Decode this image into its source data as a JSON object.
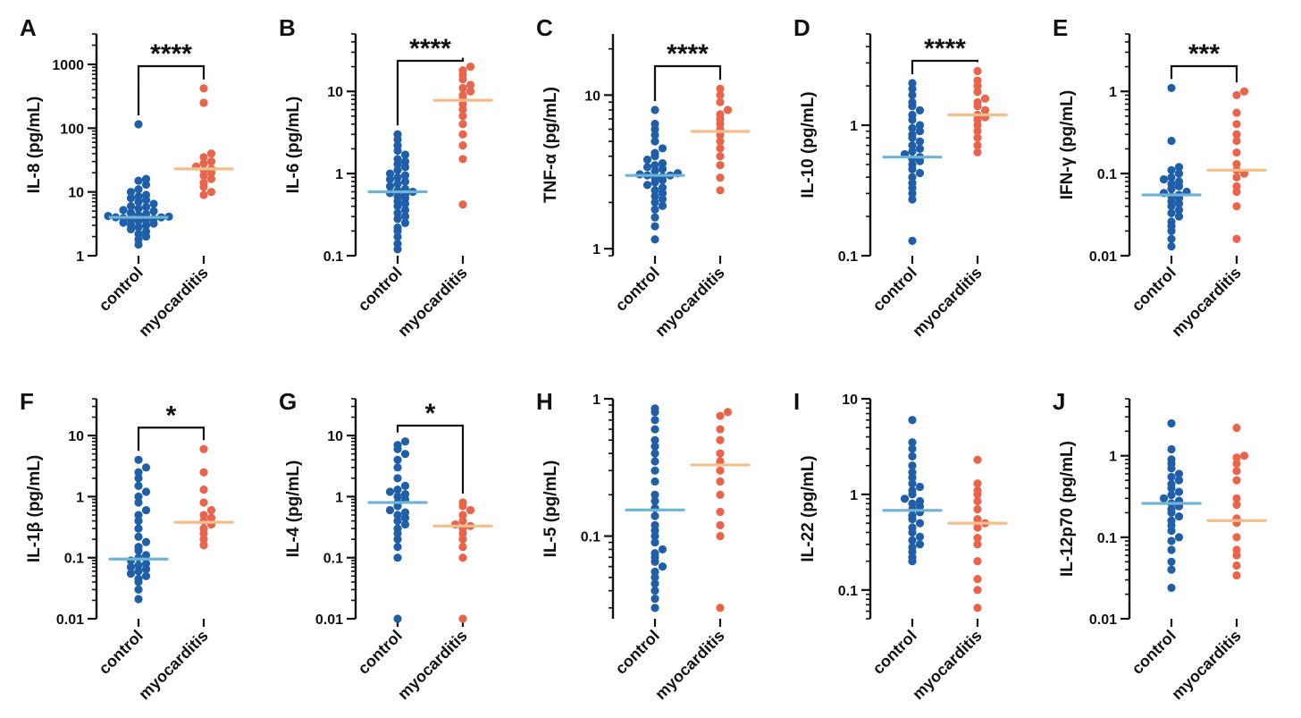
{
  "chart_data": [
    {
      "panel": "A",
      "type": "scatter",
      "ylabel": "IL-8 (pg/mL)",
      "yscale": "log",
      "ylim": [
        1,
        3000
      ],
      "yticks": [
        "1",
        "10",
        "100",
        "1000"
      ],
      "categories": [
        "control",
        "myocarditis"
      ],
      "significance": "****",
      "series": [
        {
          "name": "control",
          "color": "#1f5ea8",
          "median": 4.0,
          "values": [
            1.5,
            1.8,
            2.0,
            2.2,
            2.4,
            2.6,
            2.8,
            3.0,
            3.1,
            3.2,
            3.3,
            3.5,
            3.6,
            3.7,
            3.8,
            3.9,
            4.0,
            4.0,
            4.1,
            4.2,
            4.3,
            4.5,
            4.7,
            5.0,
            5.2,
            5.5,
            5.8,
            6.0,
            6.5,
            7.0,
            7.5,
            8.0,
            8.5,
            9.0,
            10,
            11,
            13,
            15,
            16,
            115
          ]
        },
        {
          "name": "myocarditis",
          "color": "#e8644a",
          "median": 23,
          "values": [
            9,
            10,
            12,
            14,
            16,
            18,
            20,
            22,
            23,
            25,
            28,
            30,
            35,
            40,
            250,
            420
          ]
        }
      ]
    },
    {
      "panel": "B",
      "type": "scatter",
      "ylabel": "IL-6 (pg/mL)",
      "yscale": "log",
      "ylim": [
        0.1,
        50
      ],
      "yticks": [
        "0.1",
        "1",
        "10"
      ],
      "categories": [
        "control",
        "myocarditis"
      ],
      "significance": "****",
      "series": [
        {
          "name": "control",
          "color": "#1f5ea8",
          "median": 0.6,
          "values": [
            0.12,
            0.14,
            0.17,
            0.2,
            0.22,
            0.25,
            0.28,
            0.3,
            0.33,
            0.36,
            0.4,
            0.43,
            0.46,
            0.5,
            0.53,
            0.56,
            0.58,
            0.6,
            0.62,
            0.65,
            0.7,
            0.75,
            0.8,
            0.85,
            0.9,
            0.95,
            1.0,
            1.1,
            1.2,
            1.3,
            1.4,
            1.5,
            1.7,
            1.9,
            2.2,
            2.6,
            3.0
          ]
        },
        {
          "name": "myocarditis",
          "color": "#e8644a",
          "median": 7.8,
          "values": [
            0.42,
            1.5,
            2.2,
            3.0,
            4.0,
            5.0,
            6.0,
            7.0,
            8.0,
            9.0,
            10,
            11,
            12,
            14,
            16,
            18,
            20
          ]
        }
      ]
    },
    {
      "panel": "C",
      "type": "scatter",
      "ylabel": "TNF-α (pg/mL)",
      "yscale": "log",
      "ylim": [
        0.9,
        25
      ],
      "yticks": [
        "1",
        "10"
      ],
      "categories": [
        "control",
        "myocarditis"
      ],
      "significance": "****",
      "series": [
        {
          "name": "control",
          "color": "#1f5ea8",
          "median": 3.0,
          "values": [
            1.15,
            1.4,
            1.6,
            1.8,
            1.9,
            2.0,
            2.1,
            2.2,
            2.3,
            2.4,
            2.5,
            2.6,
            2.7,
            2.8,
            2.9,
            2.95,
            3.0,
            3.0,
            3.05,
            3.1,
            3.2,
            3.3,
            3.4,
            3.5,
            3.6,
            3.8,
            4.0,
            4.2,
            4.5,
            5.0,
            5.5,
            6.0,
            6.5,
            8.0
          ]
        },
        {
          "name": "myocarditis",
          "color": "#e8644a",
          "median": 5.8,
          "values": [
            2.4,
            2.9,
            3.5,
            4.0,
            4.5,
            5.0,
            5.5,
            6.0,
            6.5,
            7.0,
            7.5,
            8.0,
            9.0,
            10,
            11
          ]
        }
      ]
    },
    {
      "panel": "D",
      "type": "scatter",
      "ylabel": "IL-10 (pg/mL)",
      "yscale": "log",
      "ylim": [
        0.1,
        5
      ],
      "yticks": [
        "0.1",
        "1"
      ],
      "categories": [
        "control",
        "myocarditis"
      ],
      "significance": "****",
      "series": [
        {
          "name": "control",
          "color": "#1f5ea8",
          "median": 0.57,
          "values": [
            0.13,
            0.27,
            0.3,
            0.33,
            0.36,
            0.4,
            0.43,
            0.46,
            0.5,
            0.53,
            0.55,
            0.57,
            0.6,
            0.63,
            0.66,
            0.7,
            0.75,
            0.8,
            0.85,
            0.9,
            0.95,
            1.0,
            1.1,
            1.2,
            1.3,
            1.4,
            1.5,
            1.7,
            1.9,
            2.1
          ]
        },
        {
          "name": "myocarditis",
          "color": "#e8644a",
          "median": 1.2,
          "values": [
            0.62,
            0.7,
            0.8,
            0.9,
            1.0,
            1.1,
            1.15,
            1.2,
            1.3,
            1.4,
            1.5,
            1.6,
            1.8,
            2.0,
            2.2,
            2.6
          ]
        }
      ]
    },
    {
      "panel": "E",
      "type": "scatter",
      "ylabel": "IFN-γ (pg/mL)",
      "yscale": "log",
      "ylim": [
        0.01,
        5
      ],
      "yticks": [
        "0.01",
        "0.1",
        "1"
      ],
      "categories": [
        "control",
        "myocarditis"
      ],
      "significance": "***",
      "series": [
        {
          "name": "control",
          "color": "#1f5ea8",
          "median": 0.055,
          "values": [
            0.013,
            0.016,
            0.02,
            0.023,
            0.026,
            0.03,
            0.033,
            0.036,
            0.04,
            0.043,
            0.046,
            0.05,
            0.053,
            0.055,
            0.058,
            0.06,
            0.065,
            0.07,
            0.075,
            0.08,
            0.085,
            0.09,
            0.1,
            0.11,
            0.12,
            0.25,
            1.1
          ]
        },
        {
          "name": "myocarditis",
          "color": "#e8644a",
          "median": 0.11,
          "values": [
            0.016,
            0.04,
            0.06,
            0.07,
            0.09,
            0.1,
            0.11,
            0.13,
            0.18,
            0.25,
            0.3,
            0.4,
            0.55,
            0.9,
            1.0
          ]
        }
      ]
    },
    {
      "panel": "F",
      "type": "scatter",
      "ylabel": "IL-1β (pg/mL)",
      "yscale": "log",
      "ylim": [
        0.01,
        40
      ],
      "yticks": [
        "0.01",
        "0.1",
        "1",
        "10"
      ],
      "categories": [
        "control",
        "myocarditis"
      ],
      "significance": "*",
      "series": [
        {
          "name": "control",
          "color": "#1f5ea8",
          "median": 0.095,
          "values": [
            0.021,
            0.03,
            0.04,
            0.045,
            0.05,
            0.055,
            0.06,
            0.065,
            0.07,
            0.075,
            0.08,
            0.09,
            0.1,
            0.11,
            0.13,
            0.15,
            0.18,
            0.22,
            0.3,
            0.4,
            0.5,
            0.6,
            0.8,
            1.0,
            1.2,
            1.5,
            2.0,
            2.5,
            3.0,
            4.0
          ]
        },
        {
          "name": "myocarditis",
          "color": "#e8644a",
          "median": 0.38,
          "values": [
            0.16,
            0.2,
            0.25,
            0.3,
            0.35,
            0.4,
            0.45,
            0.5,
            0.6,
            0.8,
            1.3,
            2.5,
            6.0
          ]
        }
      ]
    },
    {
      "panel": "G",
      "type": "scatter",
      "ylabel": "IL-4 (pg/mL)",
      "yscale": "log",
      "ylim": [
        0.01,
        40
      ],
      "yticks": [
        "0.01",
        "0.1",
        "1",
        "10"
      ],
      "categories": [
        "control",
        "myocarditis"
      ],
      "significance": "*",
      "series": [
        {
          "name": "control",
          "color": "#1f5ea8",
          "median": 0.8,
          "values": [
            0.01,
            0.1,
            0.15,
            0.2,
            0.25,
            0.3,
            0.35,
            0.4,
            0.45,
            0.5,
            0.55,
            0.6,
            0.7,
            0.8,
            0.9,
            1.0,
            1.1,
            1.2,
            1.3,
            1.5,
            2.0,
            3.0,
            4.0,
            5.0,
            6.0,
            7.0,
            8.0
          ]
        },
        {
          "name": "myocarditis",
          "color": "#e8644a",
          "median": 0.33,
          "values": [
            0.01,
            0.1,
            0.15,
            0.2,
            0.25,
            0.3,
            0.33,
            0.35,
            0.4,
            0.5,
            0.6,
            0.7,
            0.8
          ]
        }
      ]
    },
    {
      "panel": "H",
      "type": "scatter",
      "ylabel": "IL-5 (pg/mL)",
      "yscale": "log",
      "ylim": [
        0.025,
        1
      ],
      "yticks": [
        "0.1",
        "1"
      ],
      "categories": [
        "control",
        "myocarditis"
      ],
      "significance": "",
      "series": [
        {
          "name": "control",
          "color": "#1f5ea8",
          "median": 0.155,
          "values": [
            0.03,
            0.035,
            0.04,
            0.045,
            0.05,
            0.055,
            0.06,
            0.065,
            0.07,
            0.075,
            0.08,
            0.09,
            0.1,
            0.11,
            0.12,
            0.14,
            0.16,
            0.18,
            0.2,
            0.25,
            0.3,
            0.35,
            0.4,
            0.45,
            0.5,
            0.6,
            0.7,
            0.8,
            0.85
          ]
        },
        {
          "name": "myocarditis",
          "color": "#e8644a",
          "median": 0.33,
          "values": [
            0.03,
            0.1,
            0.12,
            0.15,
            0.2,
            0.25,
            0.3,
            0.35,
            0.4,
            0.5,
            0.6,
            0.75,
            0.8
          ]
        }
      ]
    },
    {
      "panel": "I",
      "type": "scatter",
      "ylabel": "IL-22 (pg/mL)",
      "yscale": "log",
      "ylim": [
        0.05,
        10
      ],
      "yticks": [
        "0.1",
        "1",
        "10"
      ],
      "categories": [
        "control",
        "myocarditis"
      ],
      "significance": "",
      "series": [
        {
          "name": "control",
          "color": "#1f5ea8",
          "median": 0.68,
          "values": [
            0.2,
            0.22,
            0.25,
            0.28,
            0.3,
            0.33,
            0.36,
            0.4,
            0.45,
            0.5,
            0.55,
            0.6,
            0.65,
            0.7,
            0.75,
            0.8,
            0.85,
            0.9,
            1.0,
            1.1,
            1.2,
            1.3,
            1.5,
            1.7,
            2.0,
            2.5,
            3.0,
            3.5,
            6.0
          ]
        },
        {
          "name": "myocarditis",
          "color": "#e8644a",
          "median": 0.5,
          "values": [
            0.065,
            0.1,
            0.13,
            0.2,
            0.3,
            0.35,
            0.45,
            0.5,
            0.55,
            0.7,
            0.85,
            1.0,
            1.1,
            1.3,
            2.3
          ]
        }
      ]
    },
    {
      "panel": "J",
      "type": "scatter",
      "ylabel": "IL-12p70 (pg/mL)",
      "yscale": "log",
      "ylim": [
        0.01,
        5
      ],
      "yticks": [
        "0.01",
        "0.1",
        "1"
      ],
      "categories": [
        "control",
        "myocarditis"
      ],
      "significance": "",
      "series": [
        {
          "name": "control",
          "color": "#1f5ea8",
          "median": 0.26,
          "values": [
            0.024,
            0.04,
            0.05,
            0.07,
            0.09,
            0.1,
            0.12,
            0.14,
            0.16,
            0.18,
            0.2,
            0.22,
            0.24,
            0.26,
            0.28,
            0.3,
            0.33,
            0.36,
            0.4,
            0.45,
            0.5,
            0.55,
            0.6,
            0.7,
            0.8,
            0.9,
            1.2,
            2.5
          ]
        },
        {
          "name": "myocarditis",
          "color": "#e8644a",
          "median": 0.16,
          "values": [
            0.034,
            0.045,
            0.06,
            0.07,
            0.1,
            0.15,
            0.17,
            0.25,
            0.3,
            0.5,
            0.65,
            0.8,
            0.95,
            1.0,
            2.2
          ]
        }
      ]
    }
  ]
}
